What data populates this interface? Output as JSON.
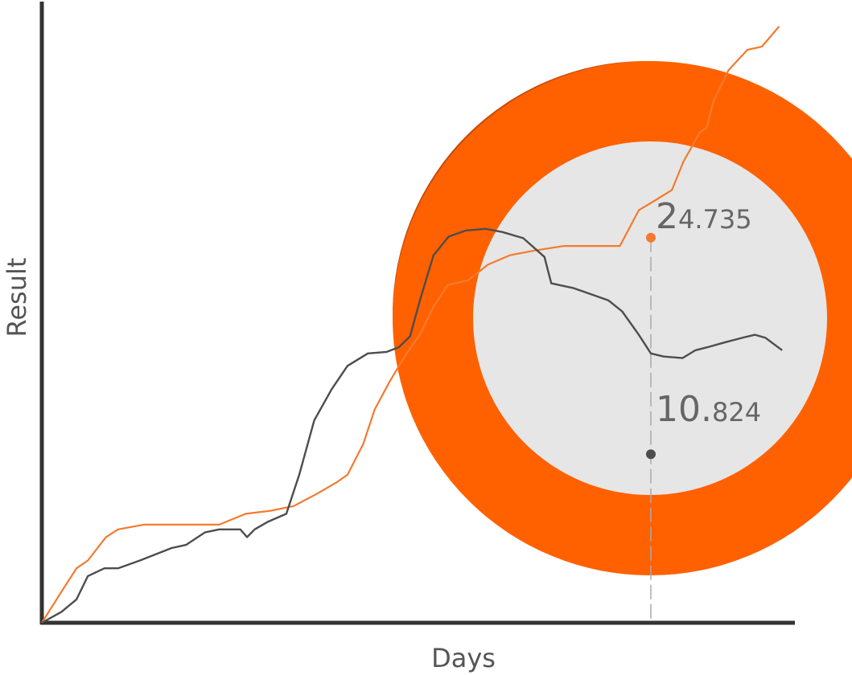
{
  "chart_data": {
    "type": "line",
    "xlabel": "Days",
    "ylabel": "Result",
    "grid": false,
    "x_range": [
      0,
      100
    ],
    "y_range": [
      0,
      40
    ],
    "series": [
      {
        "color": "#f47a2e",
        "x": [
          0,
          2.6,
          4.6,
          6.1,
          8.5,
          10.1,
          13.5,
          19.2,
          23.5,
          27.0,
          30.4,
          33.4,
          36.5,
          39.0,
          40.5,
          42.6,
          44.1,
          46.1,
          48.2,
          50.1,
          51.9,
          53.8,
          56.5,
          59.1,
          62.0,
          65.2,
          69.2,
          73.3,
          76.6,
          79.1,
          81.5,
          83.5,
          85.0,
          87.2,
          88.1,
          89.0,
          91.0,
          93.5,
          95.4,
          97.7
        ],
        "values": [
          0,
          2.0,
          3.5,
          4.0,
          5.5,
          6.0,
          6.3,
          6.3,
          6.3,
          7.0,
          7.2,
          7.5,
          8.3,
          9.0,
          9.5,
          11.5,
          13.7,
          15.5,
          17.2,
          18.5,
          20.3,
          21.7,
          22.0,
          23.0,
          23.6,
          23.9,
          24.2,
          24.2,
          24.2,
          26.5,
          27.2,
          27.8,
          29.6,
          31.5,
          31.8,
          33.5,
          35.5,
          36.8,
          37.0,
          38.3
        ]
      },
      {
        "color": "#4d4d4d",
        "x": [
          0,
          2.6,
          4.6,
          6.1,
          8.3,
          10.1,
          13.0,
          17.2,
          19.1,
          21.6,
          23.5,
          26.3,
          27.2,
          28.2,
          30.0,
          32.4,
          34.1,
          36.1,
          38.4,
          40.5,
          43.2,
          45.7,
          47.3,
          48.8,
          50.1,
          51.9,
          53.9,
          56.2,
          58.8,
          61.0,
          63.8,
          66.6,
          67.5,
          70.4,
          72.8,
          75.1,
          76.9,
          79.1,
          80.7,
          82.4,
          84.9,
          86.6,
          88.2,
          90.4,
          92.8,
          94.5,
          95.9,
          98.1
        ],
        "values": [
          0,
          0.7,
          1.5,
          3.0,
          3.5,
          3.5,
          4.0,
          4.8,
          5.0,
          5.8,
          6.0,
          6.0,
          5.5,
          6.0,
          6.5,
          7.0,
          9.5,
          13.0,
          15.0,
          16.5,
          17.3,
          17.4,
          17.7,
          18.4,
          20.7,
          23.6,
          24.8,
          25.2,
          25.3,
          25.1,
          24.7,
          23.5,
          21.8,
          21.5,
          21.1,
          20.7,
          20.0,
          18.5,
          17.3,
          17.1,
          17.0,
          17.5,
          17.7,
          18.0,
          18.3,
          18.5,
          18.3,
          17.5
        ]
      }
    ],
    "annotations": [
      {
        "label_big": "2",
        "label_small": "4.735",
        "x": 80.7,
        "y": 24.735,
        "color": "#f47a2e"
      },
      {
        "label_big": "10.",
        "label_small": "824",
        "x": 80.7,
        "y": 10.824,
        "color": "#4d4d4d"
      }
    ]
  },
  "colors": {
    "ring": "#ff6100",
    "ring_shadow": "#c44a0a",
    "disk": "#e6e6e6",
    "axis": "#333333",
    "guide": "#aaaaaa"
  }
}
